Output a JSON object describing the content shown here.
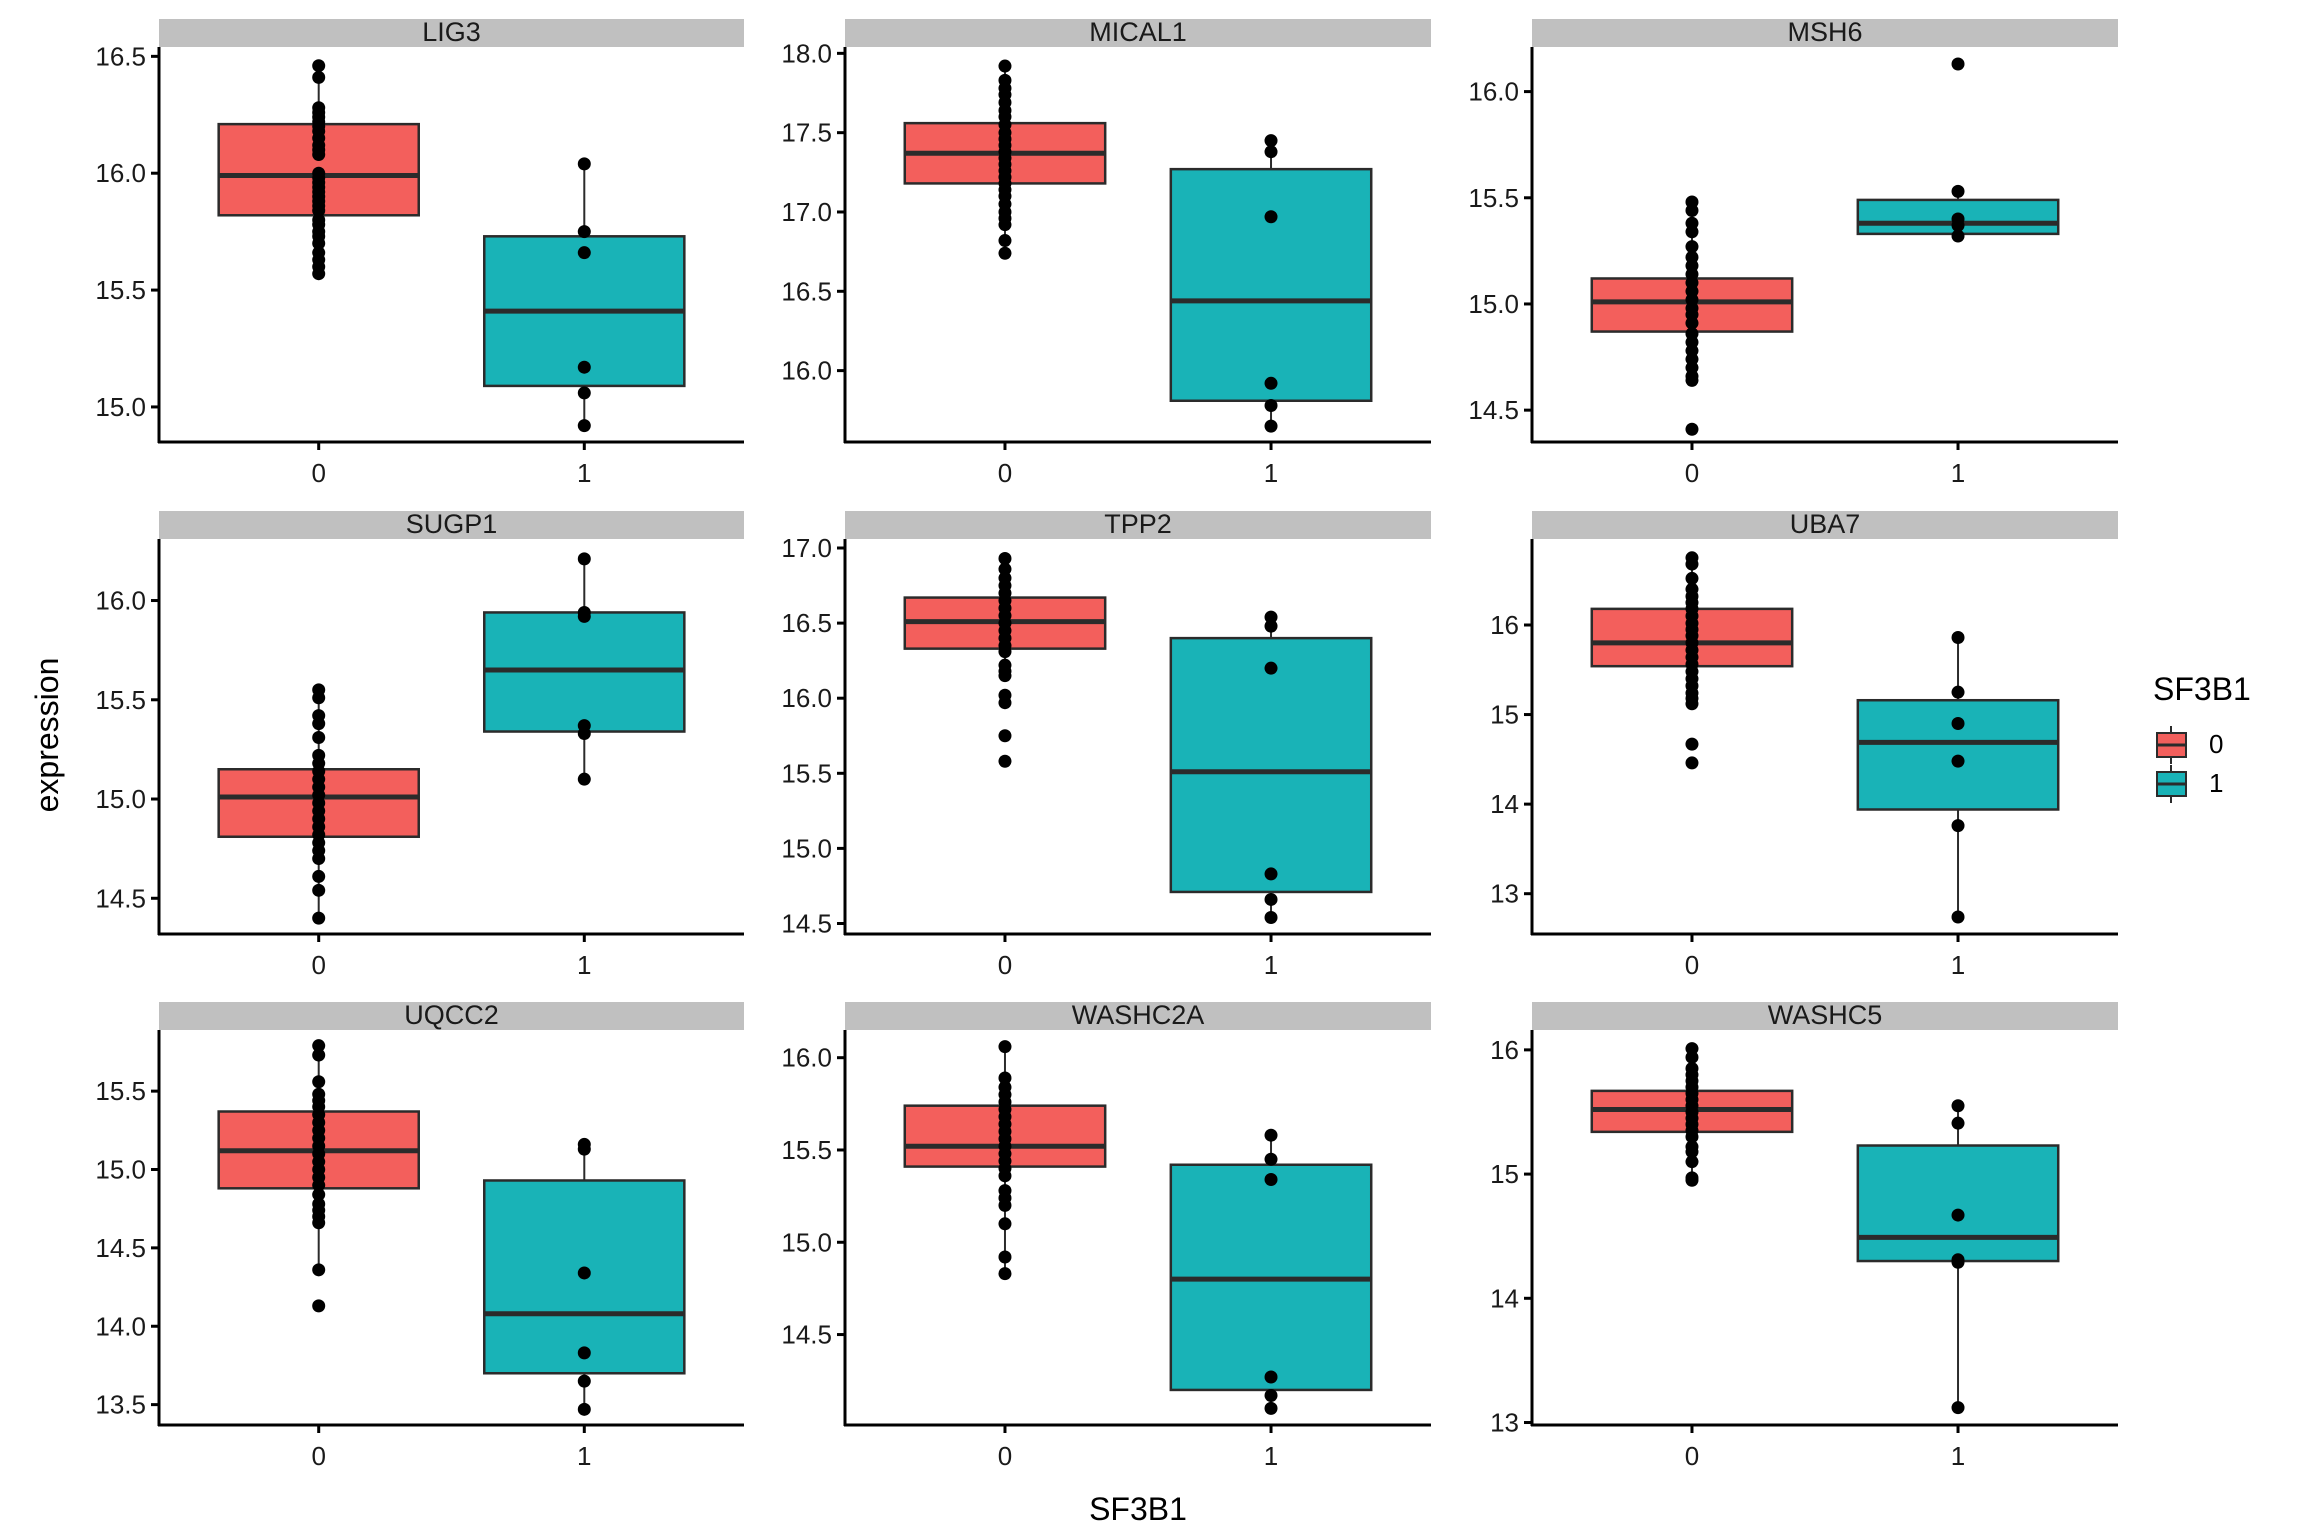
{
  "chart_data": {
    "type": "boxplot",
    "layout": "facet_wrap 3x3",
    "xlabel": "SF3B1",
    "ylabel": "expression",
    "x_categories": [
      "0",
      "1"
    ],
    "legend": {
      "title": "SF3B1",
      "position": "right",
      "entries": [
        {
          "label": "0",
          "color": "#F8766D"
        },
        {
          "label": "1",
          "color": "#00BFC4"
        }
      ]
    },
    "colors": {
      "group0_fill": "#F35F5C",
      "group1_fill": "#19B3B7",
      "strip_bg": "#C0C0C0",
      "box_line": "#2B2B2B",
      "point": "#000000"
    },
    "panels": [
      {
        "title": "LIG3",
        "ylim": [
          14.85,
          16.54
        ],
        "yticks": [
          15.0,
          15.5,
          16.0,
          16.5
        ],
        "ytick_labels": [
          "15.0",
          "15.5",
          "16.0",
          "16.5"
        ],
        "groups": [
          {
            "group": "0",
            "q1": 15.82,
            "median": 15.99,
            "q3": 16.21,
            "whisker_low": 15.57,
            "whisker_high": 16.46,
            "points": [
              16.46,
              16.41,
              16.28,
              16.26,
              16.24,
              16.22,
              16.2,
              16.18,
              16.15,
              16.12,
              16.1,
              16.08,
              16.0,
              15.98,
              15.96,
              15.94,
              15.92,
              15.9,
              15.88,
              15.86,
              15.84,
              15.8,
              15.78,
              15.75,
              15.73,
              15.7,
              15.66,
              15.63,
              15.6,
              15.57
            ]
          },
          {
            "group": "1",
            "q1": 15.09,
            "median": 15.41,
            "q3": 15.73,
            "whisker_low": 14.92,
            "whisker_high": 16.04,
            "points": [
              16.04,
              15.75,
              15.66,
              15.17,
              15.06,
              14.92
            ]
          }
        ]
      },
      {
        "title": "MICAL1",
        "ylim": [
          15.55,
          18.04
        ],
        "yticks": [
          16.0,
          16.5,
          17.0,
          17.5,
          18.0
        ],
        "ytick_labels": [
          "16.0",
          "16.5",
          "17.0",
          "17.5",
          "18.0"
        ],
        "groups": [
          {
            "group": "0",
            "q1": 17.18,
            "median": 17.37,
            "q3": 17.56,
            "whisker_low": 16.74,
            "whisker_high": 17.92,
            "points": [
              17.92,
              17.83,
              17.78,
              17.74,
              17.69,
              17.64,
              17.6,
              17.55,
              17.5,
              17.46,
              17.42,
              17.38,
              17.34,
              17.3,
              17.26,
              17.22,
              17.18,
              17.14,
              17.1,
              17.05,
              17.0,
              16.96,
              16.92,
              16.82,
              16.74
            ]
          },
          {
            "group": "1",
            "q1": 15.81,
            "median": 16.44,
            "q3": 17.27,
            "whisker_low": 15.65,
            "whisker_high": 17.45,
            "points": [
              17.45,
              17.38,
              16.97,
              15.92,
              15.78,
              15.65
            ]
          }
        ]
      },
      {
        "title": "MSH6",
        "ylim": [
          14.35,
          16.21
        ],
        "yticks": [
          14.5,
          15.0,
          15.5,
          16.0
        ],
        "ytick_labels": [
          "14.5",
          "15.0",
          "15.5",
          "16.0"
        ],
        "groups": [
          {
            "group": "0",
            "q1": 14.87,
            "median": 15.01,
            "q3": 15.12,
            "whisker_low": 14.64,
            "whisker_high": 15.48,
            "points": [
              15.48,
              15.44,
              15.38,
              15.34,
              15.27,
              15.22,
              15.18,
              15.14,
              15.1,
              15.06,
              15.02,
              14.98,
              14.95,
              14.91,
              14.86,
              14.82,
              14.78,
              14.74,
              14.7,
              14.66,
              14.64,
              14.41
            ]
          },
          {
            "group": "1",
            "q1": 15.33,
            "median": 15.38,
            "q3": 15.49,
            "whisker_low": 15.32,
            "whisker_high": 15.53,
            "points": [
              16.13,
              15.53,
              15.4,
              15.37,
              15.32
            ]
          }
        ]
      },
      {
        "title": "SUGP1",
        "ylim": [
          14.32,
          16.31
        ],
        "yticks": [
          14.5,
          15.0,
          15.5,
          16.0
        ],
        "ytick_labels": [
          "14.5",
          "15.0",
          "15.5",
          "16.0"
        ],
        "groups": [
          {
            "group": "0",
            "q1": 14.81,
            "median": 15.01,
            "q3": 15.15,
            "whisker_low": 14.4,
            "whisker_high": 15.55,
            "points": [
              15.55,
              15.51,
              15.42,
              15.38,
              15.31,
              15.22,
              15.18,
              15.14,
              15.1,
              15.06,
              15.02,
              14.98,
              14.94,
              14.9,
              14.86,
              14.82,
              14.78,
              14.74,
              14.7,
              14.61,
              14.54,
              14.4
            ]
          },
          {
            "group": "1",
            "q1": 15.34,
            "median": 15.65,
            "q3": 15.94,
            "whisker_low": 15.1,
            "whisker_high": 16.21,
            "points": [
              16.21,
              15.94,
              15.92,
              15.37,
              15.33,
              15.1
            ]
          }
        ]
      },
      {
        "title": "TPP2",
        "ylim": [
          14.43,
          17.06
        ],
        "yticks": [
          14.5,
          15.0,
          15.5,
          16.0,
          16.5,
          17.0
        ],
        "ytick_labels": [
          "14.5",
          "15.0",
          "15.5",
          "16.0",
          "16.5",
          "17.0"
        ],
        "groups": [
          {
            "group": "0",
            "q1": 16.33,
            "median": 16.51,
            "q3": 16.67,
            "whisker_low": 16.15,
            "whisker_high": 16.93,
            "points": [
              16.93,
              16.86,
              16.8,
              16.75,
              16.7,
              16.65,
              16.6,
              16.55,
              16.5,
              16.45,
              16.4,
              16.35,
              16.31,
              16.22,
              16.18,
              16.15,
              16.02,
              15.97,
              15.75,
              15.58
            ]
          },
          {
            "group": "1",
            "q1": 14.71,
            "median": 15.51,
            "q3": 16.4,
            "whisker_low": 14.54,
            "whisker_high": 16.54,
            "points": [
              16.54,
              16.48,
              16.2,
              14.83,
              14.66,
              14.54
            ]
          }
        ]
      },
      {
        "title": "UBA7",
        "ylim": [
          12.55,
          16.96
        ],
        "yticks": [
          13,
          14,
          15,
          16
        ],
        "ytick_labels": [
          "13",
          "14",
          "15",
          "16"
        ],
        "groups": [
          {
            "group": "0",
            "q1": 15.54,
            "median": 15.8,
            "q3": 16.18,
            "whisker_low": 15.1,
            "whisker_high": 16.75,
            "points": [
              16.75,
              16.68,
              16.52,
              16.4,
              16.32,
              16.25,
              16.18,
              16.1,
              16.02,
              15.95,
              15.88,
              15.8,
              15.72,
              15.64,
              15.56,
              15.48,
              15.4,
              15.32,
              15.24,
              15.18,
              15.12,
              14.67,
              14.46
            ]
          },
          {
            "group": "1",
            "q1": 13.94,
            "median": 14.69,
            "q3": 15.16,
            "whisker_low": 12.74,
            "whisker_high": 15.86,
            "points": [
              15.86,
              15.25,
              14.9,
              14.48,
              13.76,
              12.74
            ]
          }
        ]
      },
      {
        "title": "UQCC2",
        "ylim": [
          13.37,
          15.89
        ],
        "yticks": [
          13.5,
          14.0,
          14.5,
          15.0,
          15.5
        ],
        "ytick_labels": [
          "13.5",
          "14.0",
          "14.5",
          "15.0",
          "15.5"
        ],
        "groups": [
          {
            "group": "0",
            "q1": 14.88,
            "median": 15.12,
            "q3": 15.37,
            "whisker_low": 14.36,
            "whisker_high": 15.79,
            "points": [
              15.79,
              15.73,
              15.56,
              15.48,
              15.44,
              15.4,
              15.35,
              15.3,
              15.25,
              15.2,
              15.15,
              15.1,
              15.05,
              15.0,
              14.95,
              14.9,
              14.84,
              14.78,
              14.74,
              14.7,
              14.66,
              14.36,
              14.13
            ]
          },
          {
            "group": "1",
            "q1": 13.7,
            "median": 14.08,
            "q3": 14.93,
            "whisker_low": 13.47,
            "whisker_high": 15.16,
            "points": [
              15.16,
              15.13,
              14.34,
              13.83,
              13.65,
              13.47
            ]
          }
        ]
      },
      {
        "title": "WASHC2A",
        "ylim": [
          14.01,
          16.15
        ],
        "yticks": [
          14.5,
          15.0,
          15.5,
          16.0
        ],
        "ytick_labels": [
          "14.5",
          "15.0",
          "15.5",
          "16.0"
        ],
        "groups": [
          {
            "group": "0",
            "q1": 15.41,
            "median": 15.52,
            "q3": 15.74,
            "whisker_low": 14.83,
            "whisker_high": 16.06,
            "points": [
              16.06,
              15.89,
              15.84,
              15.8,
              15.76,
              15.72,
              15.68,
              15.64,
              15.6,
              15.56,
              15.52,
              15.48,
              15.44,
              15.4,
              15.36,
              15.28,
              15.24,
              15.2,
              15.1,
              14.92,
              14.83
            ]
          },
          {
            "group": "1",
            "q1": 14.2,
            "median": 14.8,
            "q3": 15.42,
            "whisker_low": 14.1,
            "whisker_high": 15.58,
            "points": [
              15.58,
              15.45,
              15.34,
              14.27,
              14.17,
              14.1
            ]
          }
        ]
      },
      {
        "title": "WASHC5",
        "ylim": [
          12.98,
          16.16
        ],
        "yticks": [
          13,
          14,
          15,
          16
        ],
        "ytick_labels": [
          "13",
          "14",
          "15",
          "16"
        ],
        "groups": [
          {
            "group": "0",
            "q1": 15.34,
            "median": 15.52,
            "q3": 15.67,
            "whisker_low": 14.95,
            "whisker_high": 16.01,
            "points": [
              16.01,
              15.94,
              15.85,
              15.8,
              15.75,
              15.7,
              15.65,
              15.6,
              15.55,
              15.5,
              15.45,
              15.4,
              15.35,
              15.3,
              15.22,
              15.18,
              15.1,
              14.97,
              14.95
            ]
          },
          {
            "group": "1",
            "q1": 14.3,
            "median": 14.49,
            "q3": 15.23,
            "whisker_low": 13.12,
            "whisker_high": 15.55,
            "points": [
              15.55,
              15.41,
              14.67,
              14.31,
              14.29,
              13.12
            ]
          }
        ]
      }
    ]
  }
}
